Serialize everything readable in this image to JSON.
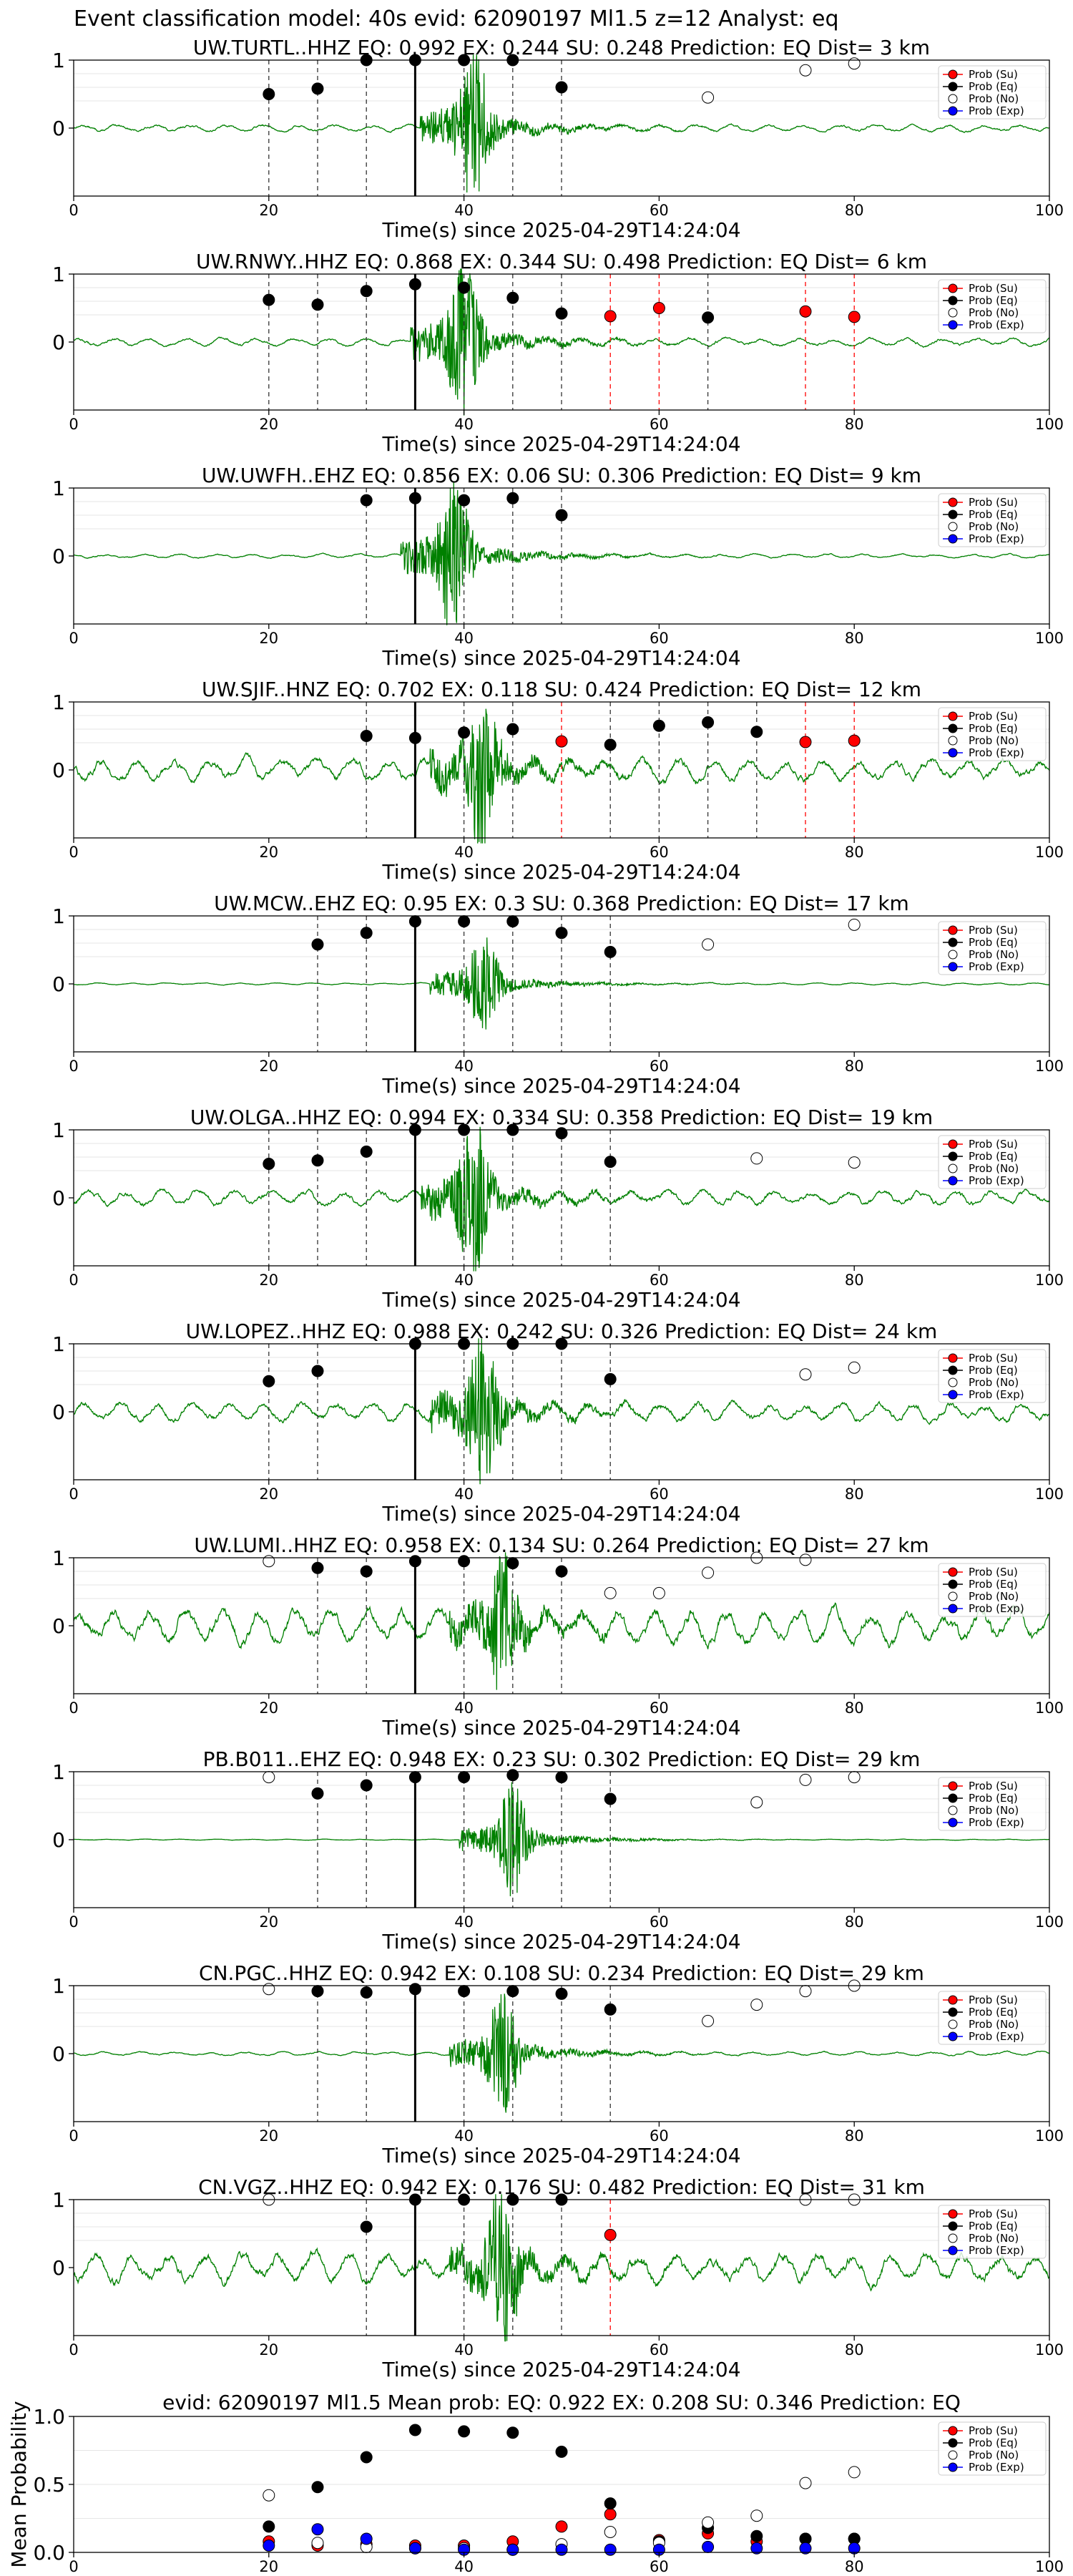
{
  "figure": {
    "suptitle": "Event classification model: 40s evid: 62090197 Ml1.5 z=12 Analyst: eq",
    "xlabel": "Time(s) since 2025-04-29T14:24:04",
    "legend": [
      "Prob (Su)",
      "Prob (Eq)",
      "Prob (No)",
      "Prob (Exp)"
    ],
    "colors": {
      "su": "#ff0000",
      "eq": "#000000",
      "no": "#ffffff",
      "exp": "#0000ff",
      "waveform": "#008000"
    }
  },
  "chart_data": [
    {
      "type": "line",
      "title": "UW.TURTL..HHZ   EQ: 0.992  EX: 0.244  SU: 0.248   Prediction: EQ    Dist= 3 km",
      "xlabel": "Time(s) since 2025-04-29T14:24:04",
      "xlim": [
        0,
        100
      ],
      "ylim": [
        -1,
        1
      ],
      "xticks": [
        0,
        20,
        40,
        60,
        80,
        100
      ],
      "yticks": [
        1,
        0
      ],
      "pick": 35,
      "waveform": {
        "peak_time": 41,
        "peak_amp": 1.0,
        "noise": 0.07
      },
      "points": [
        {
          "t": 20,
          "p": 0.5,
          "cls": "eq"
        },
        {
          "t": 25,
          "p": 0.58,
          "cls": "eq"
        },
        {
          "t": 30,
          "p": 1.0,
          "cls": "eq"
        },
        {
          "t": 35,
          "p": 1.0,
          "cls": "eq"
        },
        {
          "t": 40,
          "p": 1.0,
          "cls": "eq"
        },
        {
          "t": 45,
          "p": 1.0,
          "cls": "eq"
        },
        {
          "t": 50,
          "p": 0.6,
          "cls": "eq"
        },
        {
          "t": 65,
          "p": 0.45,
          "cls": "no"
        },
        {
          "t": 75,
          "p": 0.85,
          "cls": "no"
        },
        {
          "t": 80,
          "p": 0.95,
          "cls": "no"
        }
      ]
    },
    {
      "type": "line",
      "title": "UW.RNWY..HHZ   EQ: 0.868  EX: 0.344  SU: 0.498   Prediction: EQ    Dist= 6 km",
      "xlabel": "Time(s) since 2025-04-29T14:24:04",
      "xlim": [
        0,
        100
      ],
      "ylim": [
        -1,
        1
      ],
      "xticks": [
        0,
        20,
        40,
        60,
        80,
        100
      ],
      "yticks": [
        1,
        0
      ],
      "pick": 35,
      "waveform": {
        "peak_time": 40,
        "peak_amp": 1.0,
        "noise": 0.08
      },
      "points": [
        {
          "t": 20,
          "p": 0.62,
          "cls": "eq"
        },
        {
          "t": 25,
          "p": 0.55,
          "cls": "eq"
        },
        {
          "t": 30,
          "p": 0.75,
          "cls": "eq"
        },
        {
          "t": 35,
          "p": 0.85,
          "cls": "eq"
        },
        {
          "t": 40,
          "p": 0.8,
          "cls": "eq"
        },
        {
          "t": 45,
          "p": 0.65,
          "cls": "eq"
        },
        {
          "t": 50,
          "p": 0.42,
          "cls": "eq"
        },
        {
          "t": 55,
          "p": 0.38,
          "cls": "su"
        },
        {
          "t": 60,
          "p": 0.5,
          "cls": "su"
        },
        {
          "t": 65,
          "p": 0.36,
          "cls": "eq"
        },
        {
          "t": 75,
          "p": 0.45,
          "cls": "su"
        },
        {
          "t": 80,
          "p": 0.37,
          "cls": "su"
        }
      ]
    },
    {
      "type": "line",
      "title": "UW.UWFH..EHZ   EQ: 0.856  EX: 0.06  SU: 0.306   Prediction: EQ    Dist= 9 km",
      "xlabel": "Time(s) since 2025-04-29T14:24:04",
      "xlim": [
        0,
        100
      ],
      "ylim": [
        -1,
        1
      ],
      "xticks": [
        0,
        20,
        40,
        60,
        80,
        100
      ],
      "yticks": [
        1,
        0
      ],
      "pick": 35,
      "waveform": {
        "peak_time": 39,
        "peak_amp": 1.0,
        "noise": 0.04
      },
      "points": [
        {
          "t": 30,
          "p": 0.82,
          "cls": "eq"
        },
        {
          "t": 35,
          "p": 0.85,
          "cls": "eq"
        },
        {
          "t": 40,
          "p": 0.82,
          "cls": "eq"
        },
        {
          "t": 45,
          "p": 0.85,
          "cls": "eq"
        },
        {
          "t": 50,
          "p": 0.6,
          "cls": "eq"
        }
      ]
    },
    {
      "type": "line",
      "title": "UW.SJIF..HNZ   EQ: 0.702  EX: 0.118  SU: 0.424   Prediction: EQ    Dist= 12 km",
      "xlabel": "Time(s) since 2025-04-29T14:24:04",
      "xlim": [
        0,
        100
      ],
      "ylim": [
        -1,
        1
      ],
      "xticks": [
        0,
        20,
        40,
        60,
        80,
        100
      ],
      "yticks": [
        1,
        0
      ],
      "pick": 35,
      "waveform": {
        "peak_time": 42,
        "peak_amp": 1.0,
        "noise": 0.22
      },
      "points": [
        {
          "t": 30,
          "p": 0.5,
          "cls": "eq"
        },
        {
          "t": 35,
          "p": 0.47,
          "cls": "eq"
        },
        {
          "t": 40,
          "p": 0.55,
          "cls": "eq"
        },
        {
          "t": 45,
          "p": 0.6,
          "cls": "eq"
        },
        {
          "t": 50,
          "p": 0.42,
          "cls": "su"
        },
        {
          "t": 55,
          "p": 0.37,
          "cls": "eq"
        },
        {
          "t": 60,
          "p": 0.65,
          "cls": "eq"
        },
        {
          "t": 65,
          "p": 0.7,
          "cls": "eq"
        },
        {
          "t": 70,
          "p": 0.56,
          "cls": "eq"
        },
        {
          "t": 75,
          "p": 0.41,
          "cls": "su"
        },
        {
          "t": 80,
          "p": 0.43,
          "cls": "su"
        }
      ]
    },
    {
      "type": "line",
      "title": "UW.MCW..EHZ   EQ: 0.95  EX: 0.3  SU: 0.368   Prediction: EQ    Dist= 17 km",
      "xlabel": "Time(s) since 2025-04-29T14:24:04",
      "xlim": [
        0,
        100
      ],
      "ylim": [
        -1,
        1
      ],
      "xticks": [
        0,
        20,
        40,
        60,
        80,
        100
      ],
      "yticks": [
        1,
        0
      ],
      "pick": 35,
      "waveform": {
        "peak_time": 42,
        "peak_amp": 0.65,
        "noise": 0.02
      },
      "points": [
        {
          "t": 25,
          "p": 0.58,
          "cls": "eq"
        },
        {
          "t": 30,
          "p": 0.75,
          "cls": "eq"
        },
        {
          "t": 35,
          "p": 0.92,
          "cls": "eq"
        },
        {
          "t": 40,
          "p": 0.92,
          "cls": "eq"
        },
        {
          "t": 45,
          "p": 0.92,
          "cls": "eq"
        },
        {
          "t": 50,
          "p": 0.75,
          "cls": "eq"
        },
        {
          "t": 55,
          "p": 0.47,
          "cls": "eq"
        },
        {
          "t": 65,
          "p": 0.58,
          "cls": "no"
        },
        {
          "t": 80,
          "p": 0.87,
          "cls": "no"
        }
      ]
    },
    {
      "type": "line",
      "title": "UW.OLGA..HHZ   EQ: 0.994  EX: 0.334  SU: 0.358   Prediction: EQ    Dist= 19 km",
      "xlabel": "Time(s) since 2025-04-29T14:24:04",
      "xlim": [
        0,
        100
      ],
      "ylim": [
        -1,
        1
      ],
      "xticks": [
        0,
        20,
        40,
        60,
        80,
        100
      ],
      "yticks": [
        1,
        0
      ],
      "pick": 35,
      "waveform": {
        "peak_time": 41,
        "peak_amp": 1.0,
        "noise": 0.15
      },
      "points": [
        {
          "t": 20,
          "p": 0.5,
          "cls": "eq"
        },
        {
          "t": 25,
          "p": 0.55,
          "cls": "eq"
        },
        {
          "t": 30,
          "p": 0.68,
          "cls": "eq"
        },
        {
          "t": 35,
          "p": 1.0,
          "cls": "eq"
        },
        {
          "t": 40,
          "p": 1.0,
          "cls": "eq"
        },
        {
          "t": 45,
          "p": 1.0,
          "cls": "eq"
        },
        {
          "t": 50,
          "p": 0.95,
          "cls": "eq"
        },
        {
          "t": 55,
          "p": 0.53,
          "cls": "eq"
        },
        {
          "t": 70,
          "p": 0.58,
          "cls": "no"
        },
        {
          "t": 80,
          "p": 0.52,
          "cls": "no"
        }
      ]
    },
    {
      "type": "line",
      "title": "UW.LOPEZ..HHZ   EQ: 0.988  EX: 0.242  SU: 0.326   Prediction: EQ    Dist= 24 km",
      "xlabel": "Time(s) since 2025-04-29T14:24:04",
      "xlim": [
        0,
        100
      ],
      "ylim": [
        -1,
        1
      ],
      "xticks": [
        0,
        20,
        40,
        60,
        80,
        100
      ],
      "yticks": [
        1,
        0
      ],
      "pick": 35,
      "waveform": {
        "peak_time": 42,
        "peak_amp": 1.0,
        "noise": 0.18
      },
      "points": [
        {
          "t": 20,
          "p": 0.45,
          "cls": "eq"
        },
        {
          "t": 25,
          "p": 0.6,
          "cls": "eq"
        },
        {
          "t": 35,
          "p": 1.0,
          "cls": "eq"
        },
        {
          "t": 40,
          "p": 1.0,
          "cls": "eq"
        },
        {
          "t": 45,
          "p": 1.0,
          "cls": "eq"
        },
        {
          "t": 50,
          "p": 1.0,
          "cls": "eq"
        },
        {
          "t": 55,
          "p": 0.48,
          "cls": "eq"
        },
        {
          "t": 75,
          "p": 0.55,
          "cls": "no"
        },
        {
          "t": 80,
          "p": 0.65,
          "cls": "no"
        }
      ]
    },
    {
      "type": "line",
      "title": "UW.LUMI..HHZ   EQ: 0.958  EX: 0.134  SU: 0.264   Prediction: EQ    Dist= 27 km",
      "xlabel": "Time(s) since 2025-04-29T14:24:04",
      "xlim": [
        0,
        100
      ],
      "ylim": [
        -1,
        1
      ],
      "xticks": [
        0,
        20,
        40,
        60,
        80,
        100
      ],
      "yticks": [
        1,
        0
      ],
      "pick": 35,
      "waveform": {
        "peak_time": 44,
        "peak_amp": 1.0,
        "noise": 0.32
      },
      "points": [
        {
          "t": 20,
          "p": 0.95,
          "cls": "no"
        },
        {
          "t": 25,
          "p": 0.85,
          "cls": "eq"
        },
        {
          "t": 30,
          "p": 0.8,
          "cls": "eq"
        },
        {
          "t": 35,
          "p": 0.95,
          "cls": "eq"
        },
        {
          "t": 40,
          "p": 0.95,
          "cls": "eq"
        },
        {
          "t": 45,
          "p": 0.92,
          "cls": "eq"
        },
        {
          "t": 50,
          "p": 0.8,
          "cls": "eq"
        },
        {
          "t": 55,
          "p": 0.48,
          "cls": "no"
        },
        {
          "t": 60,
          "p": 0.48,
          "cls": "no"
        },
        {
          "t": 65,
          "p": 0.78,
          "cls": "no"
        },
        {
          "t": 70,
          "p": 1.0,
          "cls": "no"
        },
        {
          "t": 75,
          "p": 0.97,
          "cls": "no"
        }
      ]
    },
    {
      "type": "line",
      "title": "PB.B011..EHZ   EQ: 0.948  EX: 0.23  SU: 0.302   Prediction: EQ    Dist= 29 km",
      "xlabel": "Time(s) since 2025-04-29T14:24:04",
      "xlim": [
        0,
        100
      ],
      "ylim": [
        -1,
        1
      ],
      "xticks": [
        0,
        20,
        40,
        60,
        80,
        100
      ],
      "yticks": [
        1,
        0
      ],
      "pick": 35,
      "waveform": {
        "peak_time": 45,
        "peak_amp": 0.7,
        "noise": 0.01
      },
      "points": [
        {
          "t": 20,
          "p": 0.92,
          "cls": "no"
        },
        {
          "t": 25,
          "p": 0.68,
          "cls": "eq"
        },
        {
          "t": 30,
          "p": 0.8,
          "cls": "eq"
        },
        {
          "t": 35,
          "p": 0.92,
          "cls": "eq"
        },
        {
          "t": 40,
          "p": 0.92,
          "cls": "eq"
        },
        {
          "t": 45,
          "p": 0.95,
          "cls": "eq"
        },
        {
          "t": 50,
          "p": 0.92,
          "cls": "eq"
        },
        {
          "t": 55,
          "p": 0.6,
          "cls": "eq"
        },
        {
          "t": 70,
          "p": 0.55,
          "cls": "no"
        },
        {
          "t": 75,
          "p": 0.88,
          "cls": "no"
        },
        {
          "t": 80,
          "p": 0.92,
          "cls": "no"
        }
      ]
    },
    {
      "type": "line",
      "title": "CN.PGC..HHZ   EQ: 0.942  EX: 0.108  SU: 0.234   Prediction: EQ    Dist= 29 km",
      "xlabel": "Time(s) since 2025-04-29T14:24:04",
      "xlim": [
        0,
        100
      ],
      "ylim": [
        -1,
        1
      ],
      "xticks": [
        0,
        20,
        40,
        60,
        80,
        100
      ],
      "yticks": [
        1,
        0
      ],
      "pick": 35,
      "waveform": {
        "peak_time": 44,
        "peak_amp": 0.75,
        "noise": 0.04
      },
      "points": [
        {
          "t": 20,
          "p": 0.95,
          "cls": "no"
        },
        {
          "t": 25,
          "p": 0.92,
          "cls": "eq"
        },
        {
          "t": 30,
          "p": 0.9,
          "cls": "eq"
        },
        {
          "t": 35,
          "p": 0.95,
          "cls": "eq"
        },
        {
          "t": 40,
          "p": 0.92,
          "cls": "eq"
        },
        {
          "t": 45,
          "p": 0.92,
          "cls": "eq"
        },
        {
          "t": 50,
          "p": 0.88,
          "cls": "eq"
        },
        {
          "t": 55,
          "p": 0.65,
          "cls": "eq"
        },
        {
          "t": 65,
          "p": 0.48,
          "cls": "no"
        },
        {
          "t": 70,
          "p": 0.72,
          "cls": "no"
        },
        {
          "t": 75,
          "p": 0.92,
          "cls": "no"
        },
        {
          "t": 80,
          "p": 1.0,
          "cls": "no"
        }
      ]
    },
    {
      "type": "line",
      "title": "CN.VGZ..HHZ   EQ: 0.942  EX: 0.176  SU: 0.482   Prediction: EQ    Dist= 31 km",
      "xlabel": "Time(s) since 2025-04-29T14:24:04",
      "xlim": [
        0,
        100
      ],
      "ylim": [
        -1,
        1
      ],
      "xticks": [
        0,
        20,
        40,
        60,
        80,
        100
      ],
      "yticks": [
        1,
        0
      ],
      "pick": 35,
      "waveform": {
        "peak_time": 44,
        "peak_amp": 1.0,
        "noise": 0.3
      },
      "points": [
        {
          "t": 20,
          "p": 1.0,
          "cls": "no"
        },
        {
          "t": 30,
          "p": 0.6,
          "cls": "eq"
        },
        {
          "t": 35,
          "p": 1.0,
          "cls": "eq"
        },
        {
          "t": 40,
          "p": 1.0,
          "cls": "eq"
        },
        {
          "t": 45,
          "p": 1.0,
          "cls": "eq"
        },
        {
          "t": 50,
          "p": 1.0,
          "cls": "eq"
        },
        {
          "t": 55,
          "p": 0.48,
          "cls": "su"
        },
        {
          "t": 75,
          "p": 1.0,
          "cls": "no"
        },
        {
          "t": 80,
          "p": 1.0,
          "cls": "no"
        }
      ]
    },
    {
      "type": "scatter",
      "title": "evid: 62090197  Ml1.5   Mean prob:  EQ: 0.922  EX: 0.208  SU: 0.346   Prediction: EQ",
      "ylabel": "Mean Probability",
      "xlim": [
        0,
        100
      ],
      "ylim": [
        0,
        1.0
      ],
      "xticks": [
        0,
        20,
        40,
        60,
        80,
        100
      ],
      "yticks": [
        0.0,
        0.5,
        1.0
      ],
      "series": [
        {
          "name": "Prob (Su)",
          "cls": "su",
          "x": [
            20,
            25,
            30,
            35,
            40,
            45,
            50,
            55,
            60,
            65,
            70,
            75,
            80
          ],
          "y": [
            0.08,
            0.05,
            0.06,
            0.05,
            0.05,
            0.08,
            0.19,
            0.28,
            0.09,
            0.14,
            0.08,
            0.1,
            0.1
          ]
        },
        {
          "name": "Prob (Eq)",
          "cls": "eq",
          "x": [
            20,
            25,
            30,
            35,
            40,
            45,
            50,
            55,
            60,
            65,
            70,
            75,
            80
          ],
          "y": [
            0.19,
            0.48,
            0.7,
            0.9,
            0.89,
            0.88,
            0.74,
            0.36,
            0.08,
            0.18,
            0.12,
            0.1,
            0.1
          ]
        },
        {
          "name": "Prob (No)",
          "cls": "no",
          "x": [
            20,
            25,
            30,
            35,
            40,
            45,
            50,
            55,
            60,
            65,
            70,
            75,
            80
          ],
          "y": [
            0.42,
            0.07,
            0.04,
            0.03,
            0.03,
            0.02,
            0.06,
            0.15,
            0.07,
            0.22,
            0.27,
            0.51,
            0.59
          ]
        },
        {
          "name": "Prob (Exp)",
          "cls": "exp",
          "x": [
            20,
            25,
            30,
            35,
            40,
            45,
            50,
            55,
            60,
            65,
            70,
            75,
            80
          ],
          "y": [
            0.05,
            0.17,
            0.1,
            0.03,
            0.02,
            0.02,
            0.02,
            0.02,
            0.02,
            0.04,
            0.03,
            0.03,
            0.03
          ]
        }
      ]
    }
  ]
}
